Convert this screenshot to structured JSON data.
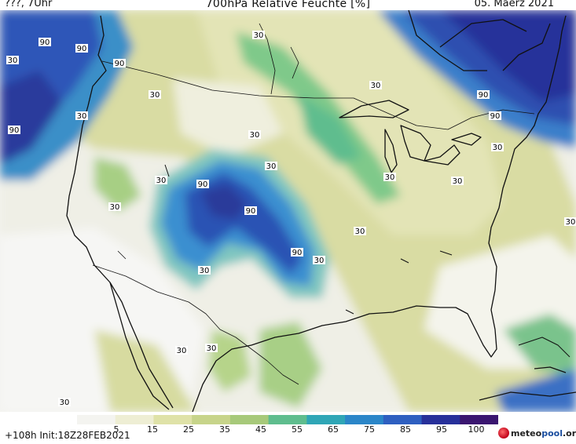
{
  "header": {
    "left": "???, 7Uhr",
    "title": "700hPa Relative Feuchte [%]",
    "date": "05. Maerz 2021"
  },
  "map": {
    "quantity": "700hPa Relative Feuchte",
    "contour_labels": [
      "90",
      "90",
      "90",
      "90",
      "90",
      "90",
      "90",
      "90",
      "90",
      "30",
      "30",
      "30",
      "30",
      "30",
      "30",
      "30",
      "30",
      "30",
      "30",
      "30",
      "30",
      "30",
      "30",
      "30",
      "30",
      "30",
      "30",
      "30"
    ]
  },
  "legend": {
    "ticks": [
      "5",
      "15",
      "25",
      "35",
      "45",
      "55",
      "65",
      "75",
      "85",
      "95",
      "100"
    ],
    "colors": [
      "#f4f4f0",
      "#eeeed4",
      "#dfe2a8",
      "#c7d48a",
      "#a7c97a",
      "#5fbd8e",
      "#2fa6b6",
      "#2b86c8",
      "#2e5fc0",
      "#27309a",
      "#3a1670"
    ]
  },
  "footer": {
    "run_info": "+108h  Init:18Z28FEB2021",
    "brand_prefix": "meteo",
    "brand_suffix": "pool",
    "brand_tld": ".org"
  }
}
